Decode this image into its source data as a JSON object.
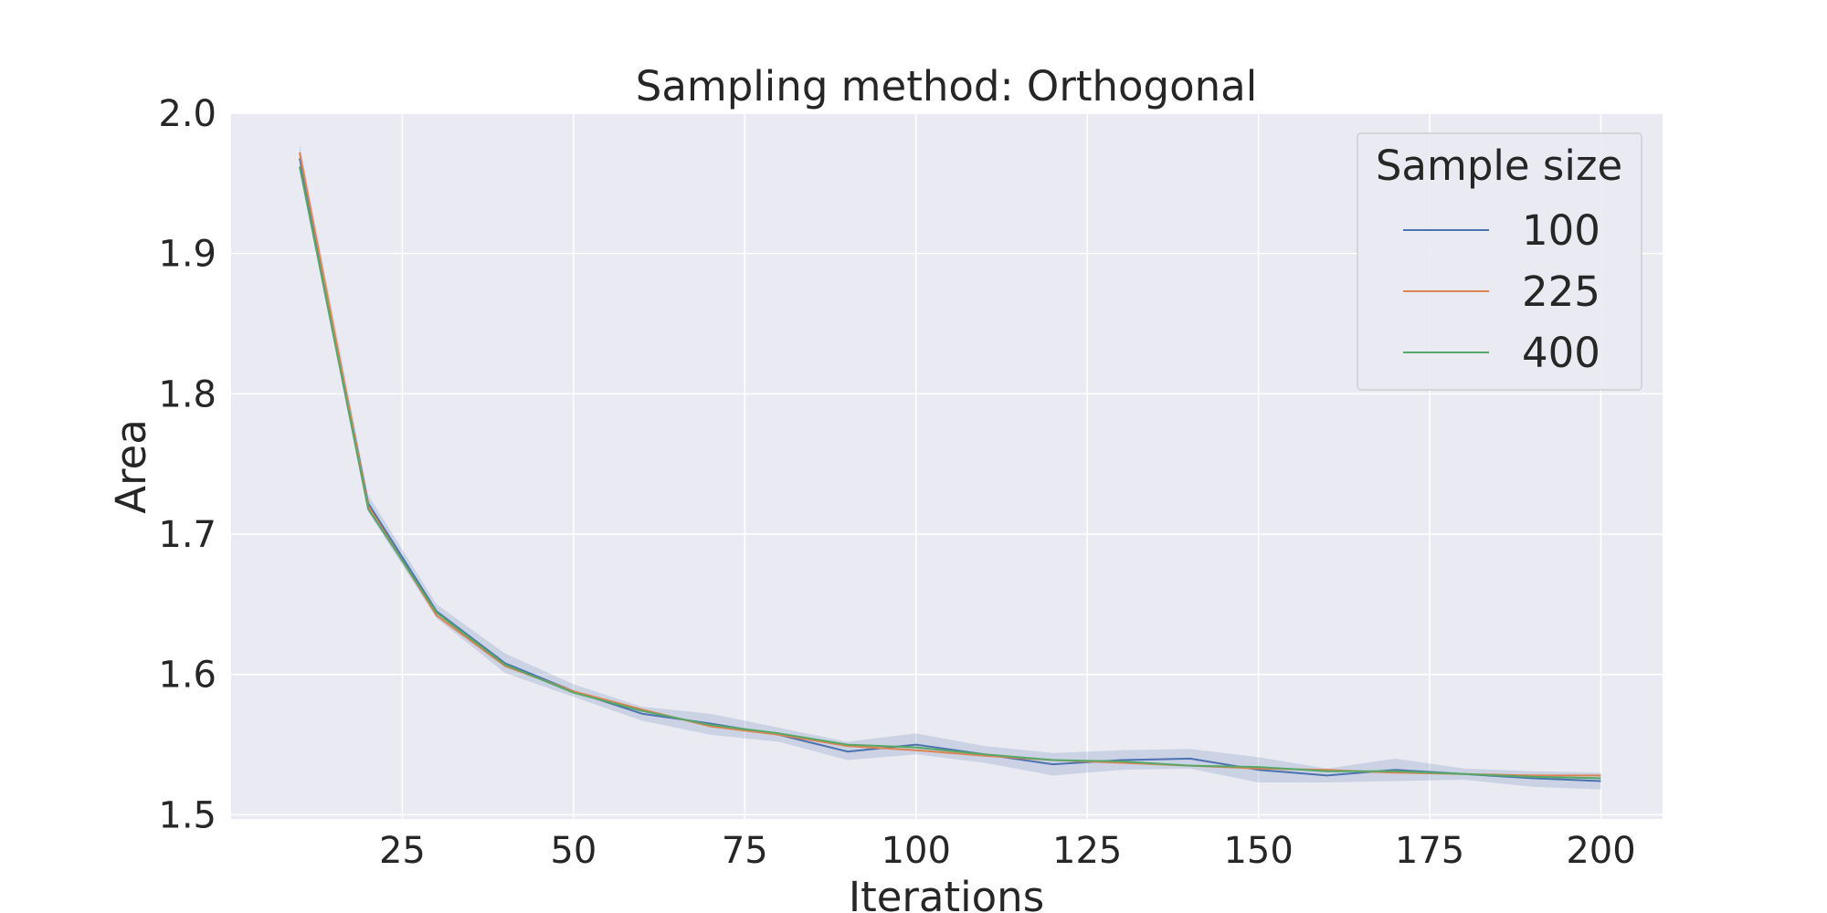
{
  "chart_data": {
    "type": "line",
    "title": "Sampling method: Orthogonal",
    "xlabel": "Iterations",
    "ylabel": "Area",
    "xlim": [
      0,
      209
    ],
    "ylim": [
      1.497,
      2.0
    ],
    "xticks": [
      25,
      50,
      75,
      100,
      125,
      150,
      175,
      200
    ],
    "xtick_labels": [
      "25",
      "50",
      "75",
      "100",
      "125",
      "150",
      "175",
      "200"
    ],
    "yticks": [
      1.5,
      1.6,
      1.7,
      1.8,
      1.9,
      2.0
    ],
    "ytick_labels": [
      "1.5",
      "1.6",
      "1.7",
      "1.8",
      "1.9",
      "2.0"
    ],
    "grid": true,
    "legend": {
      "title": "Sample size",
      "placement": "top-right"
    },
    "x": [
      10,
      20,
      30,
      40,
      50,
      60,
      70,
      80,
      90,
      100,
      110,
      120,
      130,
      140,
      150,
      160,
      170,
      180,
      190,
      200
    ],
    "series": [
      {
        "name": "100",
        "color": "#4c72b0",
        "values": [
          1.968,
          1.722,
          1.645,
          1.608,
          1.588,
          1.572,
          1.565,
          1.557,
          1.545,
          1.55,
          1.543,
          1.536,
          1.539,
          1.54,
          1.532,
          1.528,
          1.532,
          1.529,
          1.526,
          1.524
        ],
        "ci_lower": [
          1.96,
          1.716,
          1.64,
          1.601,
          1.584,
          1.567,
          1.557,
          1.552,
          1.539,
          1.543,
          1.537,
          1.528,
          1.532,
          1.533,
          1.523,
          1.523,
          1.524,
          1.525,
          1.52,
          1.518
        ],
        "ci_upper": [
          1.978,
          1.728,
          1.65,
          1.615,
          1.593,
          1.577,
          1.572,
          1.562,
          1.552,
          1.558,
          1.549,
          1.544,
          1.546,
          1.547,
          1.541,
          1.533,
          1.54,
          1.533,
          1.531,
          1.53
        ]
      },
      {
        "name": "225",
        "color": "#dd8452",
        "values": [
          1.972,
          1.72,
          1.642,
          1.606,
          1.588,
          1.575,
          1.563,
          1.557,
          1.549,
          1.546,
          1.542,
          1.539,
          1.537,
          1.535,
          1.533,
          1.532,
          1.53,
          1.529,
          1.528,
          1.528
        ]
      },
      {
        "name": "400",
        "color": "#55a868",
        "values": [
          1.962,
          1.718,
          1.644,
          1.607,
          1.587,
          1.574,
          1.564,
          1.558,
          1.55,
          1.548,
          1.543,
          1.539,
          1.538,
          1.535,
          1.534,
          1.531,
          1.531,
          1.529,
          1.527,
          1.526
        ]
      }
    ]
  }
}
